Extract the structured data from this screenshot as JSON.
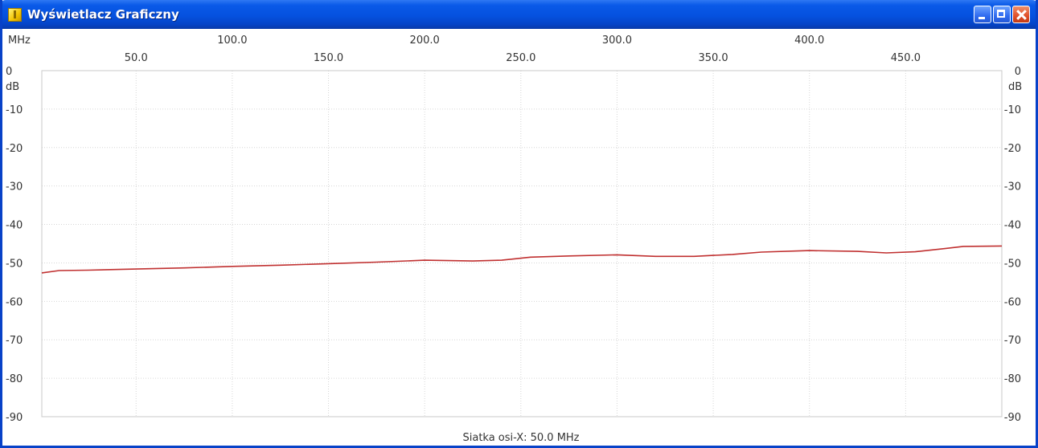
{
  "window": {
    "title": "Wyświetlacz Graficzny",
    "titlebar_color": "#0a5ae8",
    "buttons": [
      "minimize-icon",
      "maximize-icon",
      "close-icon"
    ]
  },
  "chart_data": {
    "type": "line",
    "x_unit_label": "MHz",
    "y_unit_label_left": "dB",
    "y_unit_label_right": "dB",
    "x_ticks_top_row": [
      "100.0",
      "200.0",
      "300.0",
      "400.0"
    ],
    "x_ticks_bottom_row": [
      "50.0",
      "150.0",
      "250.0",
      "350.0",
      "450.0"
    ],
    "y_ticks": [
      "0",
      "-10",
      "-20",
      "-30",
      "-40",
      "-50",
      "-60",
      "-70",
      "-80",
      "-90"
    ],
    "xlim": [
      1,
      500
    ],
    "ylim": [
      -90,
      0
    ],
    "grid": true,
    "grid_x_step": 50,
    "grid_y_step": 10,
    "footer": "Siatka osi-X: 50.0 MHz",
    "line_color": "#c03030",
    "series": [
      {
        "values": [
          [
            1,
            -52.6
          ],
          [
            10,
            -52.0
          ],
          [
            25,
            -51.9
          ],
          [
            50,
            -51.6
          ],
          [
            75,
            -51.3
          ],
          [
            100,
            -50.9
          ],
          [
            125,
            -50.6
          ],
          [
            150,
            -50.2
          ],
          [
            175,
            -49.8
          ],
          [
            200,
            -49.3
          ],
          [
            225,
            -49.5
          ],
          [
            240,
            -49.3
          ],
          [
            255,
            -48.5
          ],
          [
            275,
            -48.2
          ],
          [
            300,
            -47.9
          ],
          [
            320,
            -48.3
          ],
          [
            340,
            -48.3
          ],
          [
            360,
            -47.8
          ],
          [
            375,
            -47.2
          ],
          [
            400,
            -46.8
          ],
          [
            425,
            -47.0
          ],
          [
            440,
            -47.4
          ],
          [
            455,
            -47.1
          ],
          [
            470,
            -46.3
          ],
          [
            480,
            -45.7
          ],
          [
            500,
            -45.6
          ]
        ]
      }
    ]
  }
}
